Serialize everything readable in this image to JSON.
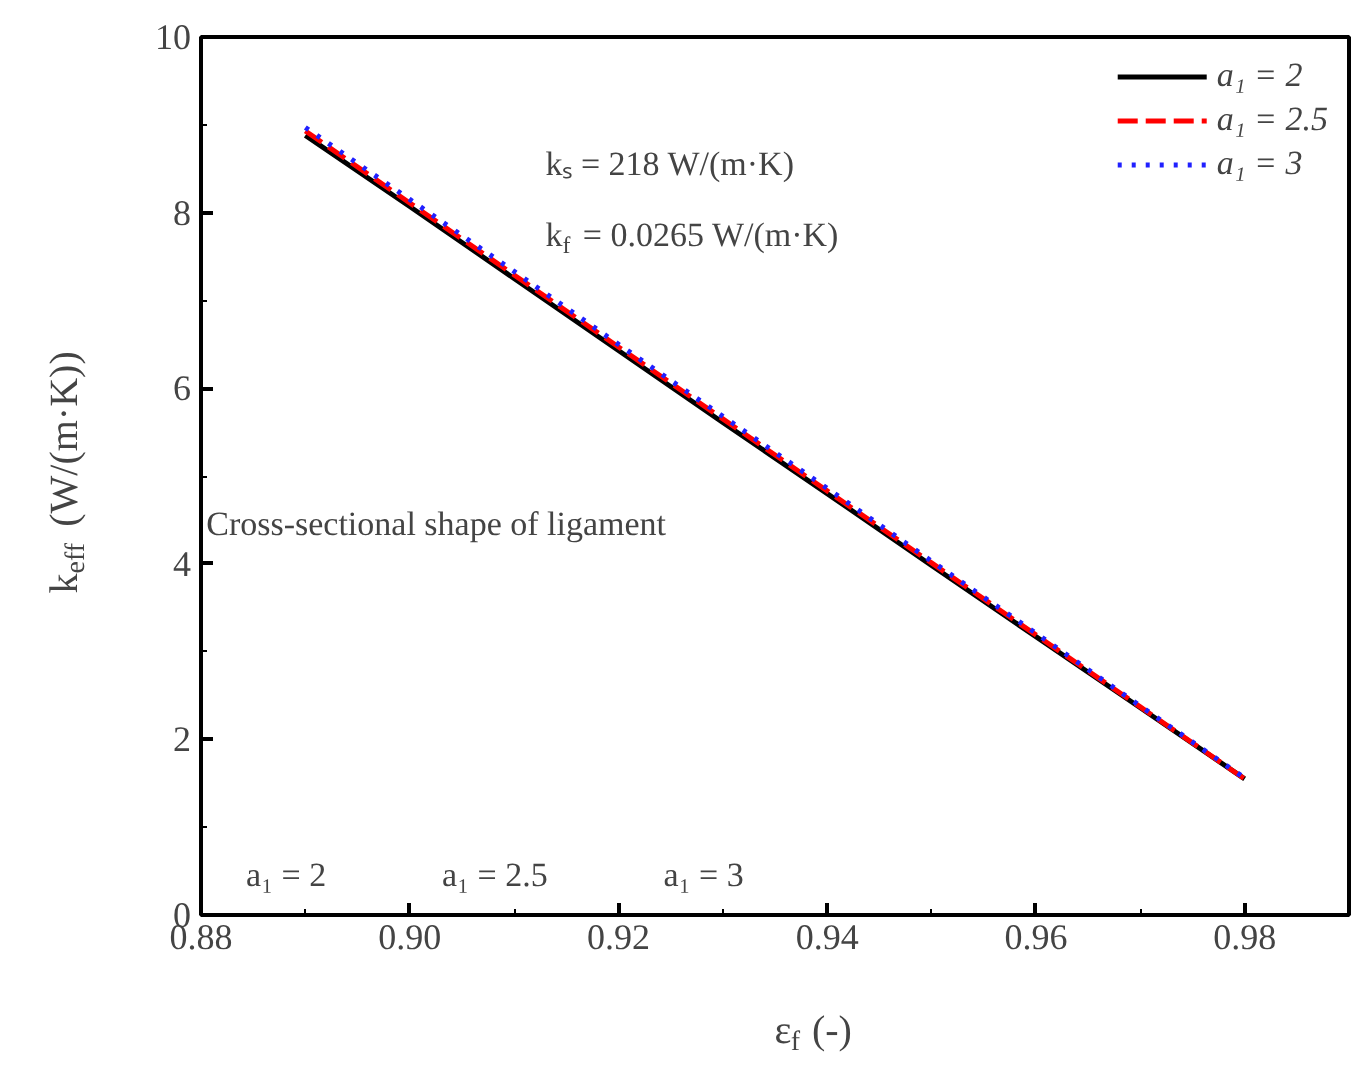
{
  "chart_data": {
    "type": "line",
    "x": [
      0.89,
      0.9,
      0.91,
      0.92,
      0.93,
      0.94,
      0.95,
      0.96,
      0.97,
      0.98
    ],
    "series": [
      {
        "name": "a₁ = 2",
        "color": "#000000",
        "line_style": "solid",
        "values": [
          8.88,
          8.07,
          7.25,
          6.43,
          5.61,
          4.8,
          3.98,
          3.17,
          2.36,
          1.55
        ]
      },
      {
        "name": "a₁ = 2.5",
        "color": "#ff0000",
        "line_style": "dashed",
        "values": [
          8.93,
          8.11,
          7.29,
          6.47,
          5.65,
          4.83,
          4.01,
          3.19,
          2.37,
          1.55
        ]
      },
      {
        "name": "a₁ = 3",
        "color": "#2020ff",
        "line_style": "dotted",
        "values": [
          8.97,
          8.15,
          7.33,
          6.5,
          5.68,
          4.86,
          4.03,
          3.21,
          2.38,
          1.56
        ]
      }
    ],
    "xlabel": "ε$_{f}$ (-)",
    "ylabel": "k$_{eff}$ (W/(m·K))",
    "xlim": [
      0.88,
      0.99
    ],
    "ylim": [
      0,
      10
    ],
    "xticks": [
      {
        "value": 0.88,
        "label": "0.88"
      },
      {
        "value": 0.9,
        "label": "0.90"
      },
      {
        "value": 0.92,
        "label": "0.92"
      },
      {
        "value": 0.94,
        "label": "0.94"
      },
      {
        "value": 0.96,
        "label": "0.96"
      },
      {
        "value": 0.98,
        "label": "0.98"
      }
    ],
    "yticks": [
      0,
      2,
      4,
      6,
      8,
      10
    ],
    "annotations": [
      "kₛ = 218 W/(m·K)",
      "k$_{f}$ = 0.0265 W/(m·K)",
      "Cross-sectional shape of ligament",
      "a₁ = 2",
      "a₁ = 2.5",
      "a₁ = 3"
    ],
    "grid": false,
    "legend": "top right"
  }
}
